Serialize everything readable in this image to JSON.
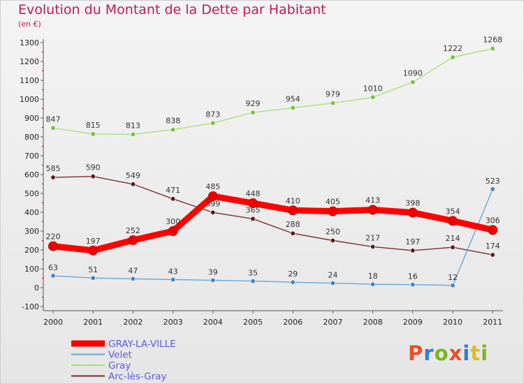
{
  "title": "Evolution du Montant de la Dette par Habitant",
  "subtitle": "(en €)",
  "logo": {
    "text": "Proxiti",
    "colors": [
      "#e6502a",
      "#2a7fd4",
      "#7ab51d",
      "#e6502a",
      "#2a7fd4",
      "#e6b81d",
      "#7ab51d"
    ]
  },
  "chart_data": {
    "type": "line",
    "title": "Evolution du Montant de la Dette par Habitant",
    "ylabel": "(en €)",
    "xlabel": "",
    "categories": [
      "2000",
      "2001",
      "2002",
      "2003",
      "2004",
      "2005",
      "2006",
      "2007",
      "2008",
      "2009",
      "2010",
      "2011"
    ],
    "ylim": [
      -100,
      1300
    ],
    "yticks": [
      "-100",
      "0",
      "100",
      "200",
      "300",
      "400",
      "500",
      "600",
      "700",
      "800",
      "900",
      "1000",
      "1100",
      "1200",
      "1300"
    ],
    "grid": false,
    "legend_position": "bottom-left",
    "series": [
      {
        "name": "GRAY-LA-VILLE",
        "color": "#ff0000",
        "marker": "#dd0000",
        "values": [
          220,
          197,
          252,
          300,
          485,
          448,
          410,
          405,
          413,
          398,
          354,
          306
        ]
      },
      {
        "name": "Velet",
        "color": "#6aa6d6",
        "marker": "#3d85c6",
        "values": [
          63,
          51,
          47,
          43,
          39,
          35,
          29,
          24,
          18,
          16,
          12,
          523
        ]
      },
      {
        "name": "Gray",
        "color": "#a8e07a",
        "marker": "#77c23a",
        "values": [
          847,
          815,
          813,
          838,
          873,
          929,
          954,
          979,
          1010,
          1090,
          1222,
          1268
        ]
      },
      {
        "name": "Arc-lès-Gray",
        "color": "#7a2e2e",
        "marker": "#5a1818",
        "values": [
          585,
          590,
          549,
          471,
          399,
          365,
          288,
          250,
          217,
          197,
          214,
          174
        ]
      }
    ]
  }
}
